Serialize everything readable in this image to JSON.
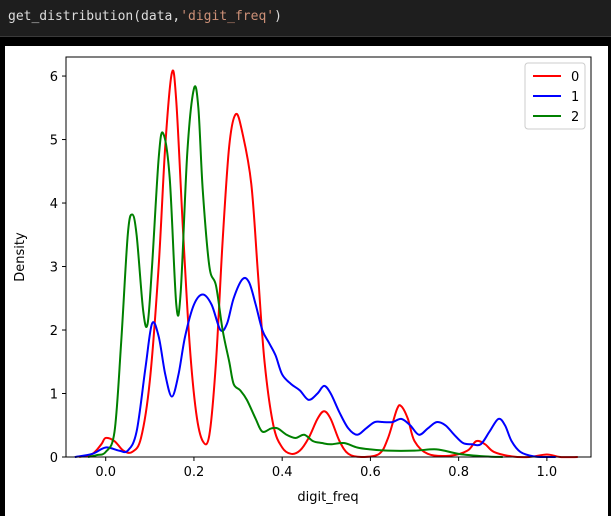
{
  "cell": {
    "code_prefix": "get_distribution(data,",
    "code_string": "'digit_freq'",
    "code_suffix": ")"
  },
  "chart_data": {
    "type": "line",
    "title": "",
    "xlabel": "digit_freq",
    "ylabel": "Density",
    "xlim": [
      -0.09,
      1.1
    ],
    "ylim": [
      0,
      6.3
    ],
    "xticks": [
      0.0,
      0.2,
      0.4,
      0.6,
      0.8,
      1.0
    ],
    "xtick_labels": [
      "0.0",
      "0.2",
      "0.4",
      "0.6",
      "0.8",
      "1.0"
    ],
    "yticks": [
      0,
      1,
      2,
      3,
      4,
      5,
      6
    ],
    "ytick_labels": [
      "0",
      "1",
      "2",
      "3",
      "4",
      "5",
      "6"
    ],
    "legend_position": "top-right",
    "series": [
      {
        "name": "0",
        "color": "#ff0000",
        "points": [
          [
            -0.06,
            0.0
          ],
          [
            -0.03,
            0.05
          ],
          [
            -0.01,
            0.2
          ],
          [
            0.0,
            0.3
          ],
          [
            0.02,
            0.25
          ],
          [
            0.04,
            0.1
          ],
          [
            0.06,
            0.08
          ],
          [
            0.08,
            0.3
          ],
          [
            0.1,
            1.2
          ],
          [
            0.12,
            3.0
          ],
          [
            0.135,
            4.9
          ],
          [
            0.15,
            6.05
          ],
          [
            0.16,
            5.6
          ],
          [
            0.175,
            3.6
          ],
          [
            0.19,
            1.8
          ],
          [
            0.205,
            0.7
          ],
          [
            0.22,
            0.25
          ],
          [
            0.235,
            0.35
          ],
          [
            0.25,
            1.5
          ],
          [
            0.265,
            3.4
          ],
          [
            0.28,
            4.9
          ],
          [
            0.295,
            5.4
          ],
          [
            0.31,
            5.1
          ],
          [
            0.33,
            4.3
          ],
          [
            0.345,
            2.9
          ],
          [
            0.36,
            1.5
          ],
          [
            0.38,
            0.5
          ],
          [
            0.4,
            0.15
          ],
          [
            0.42,
            0.05
          ],
          [
            0.44,
            0.1
          ],
          [
            0.46,
            0.3
          ],
          [
            0.48,
            0.6
          ],
          [
            0.495,
            0.72
          ],
          [
            0.51,
            0.6
          ],
          [
            0.53,
            0.25
          ],
          [
            0.55,
            0.05
          ],
          [
            0.58,
            0.0
          ],
          [
            0.62,
            0.05
          ],
          [
            0.64,
            0.3
          ],
          [
            0.66,
            0.75
          ],
          [
            0.67,
            0.8
          ],
          [
            0.685,
            0.6
          ],
          [
            0.7,
            0.25
          ],
          [
            0.73,
            0.05
          ],
          [
            0.78,
            0.02
          ],
          [
            0.82,
            0.1
          ],
          [
            0.84,
            0.25
          ],
          [
            0.86,
            0.2
          ],
          [
            0.88,
            0.08
          ],
          [
            0.92,
            0.01
          ],
          [
            0.96,
            0.0
          ],
          [
            1.0,
            0.04
          ],
          [
            1.03,
            0.0
          ],
          [
            1.07,
            0.0
          ]
        ]
      },
      {
        "name": "1",
        "color": "#0000ff",
        "points": [
          [
            -0.07,
            0.0
          ],
          [
            -0.03,
            0.05
          ],
          [
            0.0,
            0.15
          ],
          [
            0.03,
            0.1
          ],
          [
            0.05,
            0.1
          ],
          [
            0.07,
            0.4
          ],
          [
            0.09,
            1.4
          ],
          [
            0.105,
            2.1
          ],
          [
            0.12,
            1.9
          ],
          [
            0.135,
            1.3
          ],
          [
            0.15,
            0.95
          ],
          [
            0.165,
            1.3
          ],
          [
            0.18,
            1.9
          ],
          [
            0.2,
            2.4
          ],
          [
            0.22,
            2.56
          ],
          [
            0.24,
            2.4
          ],
          [
            0.26,
            2.0
          ],
          [
            0.275,
            2.1
          ],
          [
            0.29,
            2.5
          ],
          [
            0.31,
            2.8
          ],
          [
            0.325,
            2.75
          ],
          [
            0.34,
            2.4
          ],
          [
            0.355,
            2.0
          ],
          [
            0.37,
            1.8
          ],
          [
            0.385,
            1.6
          ],
          [
            0.4,
            1.3
          ],
          [
            0.42,
            1.15
          ],
          [
            0.44,
            1.05
          ],
          [
            0.46,
            0.9
          ],
          [
            0.48,
            1.0
          ],
          [
            0.495,
            1.12
          ],
          [
            0.51,
            1.0
          ],
          [
            0.53,
            0.7
          ],
          [
            0.55,
            0.45
          ],
          [
            0.57,
            0.35
          ],
          [
            0.59,
            0.45
          ],
          [
            0.61,
            0.55
          ],
          [
            0.63,
            0.55
          ],
          [
            0.65,
            0.55
          ],
          [
            0.67,
            0.6
          ],
          [
            0.69,
            0.5
          ],
          [
            0.71,
            0.35
          ],
          [
            0.73,
            0.45
          ],
          [
            0.75,
            0.55
          ],
          [
            0.77,
            0.5
          ],
          [
            0.79,
            0.35
          ],
          [
            0.81,
            0.22
          ],
          [
            0.83,
            0.2
          ],
          [
            0.85,
            0.2
          ],
          [
            0.87,
            0.4
          ],
          [
            0.89,
            0.6
          ],
          [
            0.905,
            0.5
          ],
          [
            0.92,
            0.25
          ],
          [
            0.94,
            0.08
          ],
          [
            0.97,
            0.01
          ],
          [
            1.0,
            0.0
          ],
          [
            1.02,
            0.0
          ]
        ]
      },
      {
        "name": "2",
        "color": "#008000",
        "points": [
          [
            -0.04,
            0.0
          ],
          [
            -0.02,
            0.03
          ],
          [
            0.0,
            0.08
          ],
          [
            0.02,
            0.4
          ],
          [
            0.035,
            1.8
          ],
          [
            0.05,
            3.5
          ],
          [
            0.06,
            3.82
          ],
          [
            0.07,
            3.5
          ],
          [
            0.085,
            2.3
          ],
          [
            0.095,
            2.1
          ],
          [
            0.105,
            3.0
          ],
          [
            0.12,
            4.7
          ],
          [
            0.13,
            5.1
          ],
          [
            0.145,
            4.4
          ],
          [
            0.16,
            2.4
          ],
          [
            0.17,
            2.6
          ],
          [
            0.185,
            4.8
          ],
          [
            0.2,
            5.8
          ],
          [
            0.21,
            5.5
          ],
          [
            0.22,
            4.2
          ],
          [
            0.235,
            3.0
          ],
          [
            0.25,
            2.7
          ],
          [
            0.265,
            2.0
          ],
          [
            0.28,
            1.5
          ],
          [
            0.29,
            1.15
          ],
          [
            0.305,
            1.05
          ],
          [
            0.32,
            0.9
          ],
          [
            0.34,
            0.6
          ],
          [
            0.355,
            0.4
          ],
          [
            0.375,
            0.45
          ],
          [
            0.39,
            0.45
          ],
          [
            0.41,
            0.35
          ],
          [
            0.43,
            0.3
          ],
          [
            0.45,
            0.35
          ],
          [
            0.47,
            0.25
          ],
          [
            0.49,
            0.22
          ],
          [
            0.51,
            0.2
          ],
          [
            0.54,
            0.22
          ],
          [
            0.57,
            0.15
          ],
          [
            0.6,
            0.12
          ],
          [
            0.64,
            0.1
          ],
          [
            0.7,
            0.1
          ],
          [
            0.75,
            0.12
          ],
          [
            0.8,
            0.05
          ],
          [
            0.86,
            0.01
          ],
          [
            0.9,
            0.0
          ]
        ]
      }
    ]
  }
}
